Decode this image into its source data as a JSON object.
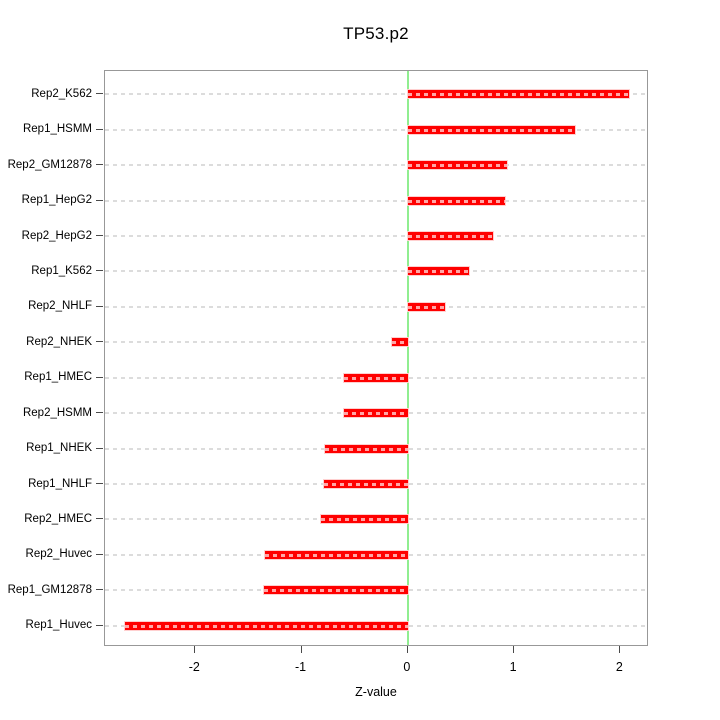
{
  "title": "TP53.p2",
  "xlabel": "Z-value",
  "colors": {
    "bar": "#ff0000",
    "bar_border": "#ffd0d0",
    "zero_line": "#90ee90",
    "grid": "#dcdcdc",
    "box": "#989898",
    "tick": "#4a4a4a",
    "text": "#000000"
  },
  "chart_data": {
    "type": "bar",
    "orientation": "horizontal",
    "title": "TP53.p2",
    "xlabel": "Z-value",
    "ylabel": "",
    "categories": [
      "Rep2_K562",
      "Rep1_HSMM",
      "Rep2_GM12878",
      "Rep1_HepG2",
      "Rep2_HepG2",
      "Rep1_K562",
      "Rep2_NHLF",
      "Rep2_NHEK",
      "Rep1_HMEC",
      "Rep2_HSMM",
      "Rep1_NHEK",
      "Rep1_NHLF",
      "Rep2_HMEC",
      "Rep2_Huvec",
      "Rep1_GM12878",
      "Rep1_Huvec"
    ],
    "values": [
      2.08,
      1.57,
      0.93,
      0.91,
      0.8,
      0.58,
      0.35,
      -0.15,
      -0.6,
      -0.6,
      -0.78,
      -0.79,
      -0.82,
      -1.34,
      -1.35,
      -2.66
    ],
    "x_ticks": [
      -2,
      -1,
      0,
      1,
      2
    ],
    "x_tick_labels": [
      "-2",
      "-1",
      "0",
      "1",
      "2"
    ],
    "xlim": [
      -2.85,
      2.27
    ],
    "grid": true,
    "grid_style": "dashed-horizontal",
    "zero_line": 0,
    "legend": "none"
  }
}
